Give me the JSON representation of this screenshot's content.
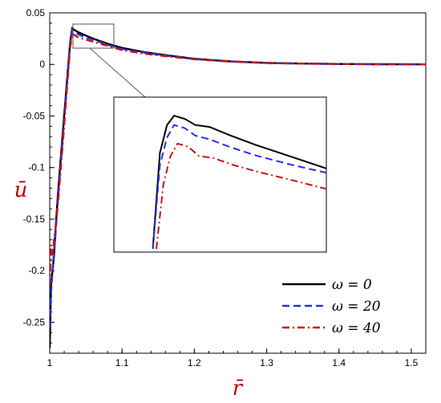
{
  "chart_data": {
    "type": "line",
    "title": "",
    "xlabel": "r̄",
    "ylabel": "ū",
    "xlim": [
      1.0,
      1.52
    ],
    "ylim": [
      -0.28,
      0.05
    ],
    "x_ticks": [
      "1",
      "1.1",
      "1.2",
      "1.3",
      "1.4",
      "1.5"
    ],
    "y_ticks": [
      "0.05",
      "0",
      "-0.05",
      "-0.1",
      "-0.15",
      "-0.2",
      "-0.25"
    ],
    "x_tick_values": [
      1.0,
      1.1,
      1.2,
      1.3,
      1.4,
      1.5
    ],
    "y_tick_values": [
      0.05,
      0,
      -0.05,
      -0.1,
      -0.15,
      -0.2,
      -0.25
    ],
    "legend_position": "bottom-right",
    "label_color": "#c00000",
    "series": [
      {
        "name": "ω = 0",
        "color": "#000000",
        "dash": "solid",
        "x": [
          1.0,
          1.002,
          1.004,
          1.006,
          1.008,
          1.012,
          1.02,
          1.028,
          1.031,
          1.035,
          1.04,
          1.05,
          1.06,
          1.08,
          1.1,
          1.13,
          1.16,
          1.2,
          1.25,
          1.3,
          1.35,
          1.4,
          1.45,
          1.5,
          1.52
        ],
        "y": [
          -0.275,
          -0.21,
          -0.2,
          -0.185,
          -0.16,
          -0.12,
          -0.05,
          0.02,
          0.035,
          0.033,
          0.031,
          0.028,
          0.025,
          0.02,
          0.016,
          0.012,
          0.009,
          0.0055,
          0.003,
          0.0015,
          0.0008,
          0.0004,
          0.0002,
          0.0001,
          0.0
        ]
      },
      {
        "name": "ω = 20",
        "color": "#2233dd",
        "dash": "dashed",
        "x": [
          1.0,
          1.002,
          1.004,
          1.006,
          1.008,
          1.012,
          1.02,
          1.028,
          1.031,
          1.035,
          1.04,
          1.05,
          1.06,
          1.08,
          1.1,
          1.13,
          1.16,
          1.2,
          1.25,
          1.3,
          1.35,
          1.4,
          1.45,
          1.5,
          1.52
        ],
        "y": [
          -0.255,
          -0.22,
          -0.2,
          -0.18,
          -0.165,
          -0.125,
          -0.055,
          0.018,
          0.033,
          0.031,
          0.029,
          0.026,
          0.024,
          0.019,
          0.015,
          0.0115,
          0.0085,
          0.0052,
          0.0028,
          0.0014,
          0.0007,
          0.0004,
          0.0002,
          0.0001,
          0.0
        ]
      },
      {
        "name": "ω = 40",
        "color": "#cc1111",
        "dash": "dashdot",
        "x": [
          1.0,
          1.002,
          1.004,
          1.006,
          1.008,
          1.012,
          1.02,
          1.028,
          1.031,
          1.035,
          1.04,
          1.05,
          1.06,
          1.08,
          1.1,
          1.13,
          1.16,
          1.2,
          1.25,
          1.3,
          1.35,
          1.4,
          1.45,
          1.5,
          1.52
        ],
        "y": [
          -0.215,
          -0.175,
          -0.185,
          -0.17,
          -0.16,
          -0.13,
          -0.06,
          0.015,
          0.03,
          0.028,
          0.026,
          0.024,
          0.022,
          0.018,
          0.014,
          0.0105,
          0.008,
          0.005,
          0.0027,
          0.0013,
          0.0007,
          0.0004,
          0.0002,
          0.0001,
          0.0
        ]
      }
    ],
    "inset": {
      "source_xlim": [
        1.015,
        1.075
      ],
      "source_ylim": [
        0.013,
        0.038
      ],
      "series": [
        {
          "x": [
            1.026,
            1.028,
            1.03,
            1.032,
            1.035,
            1.038,
            1.042,
            1.048,
            1.055,
            1.065,
            1.075
          ],
          "y": [
            0.0135,
            0.029,
            0.0335,
            0.035,
            0.0345,
            0.0335,
            0.0332,
            0.0318,
            0.0303,
            0.0284,
            0.0265
          ]
        },
        {
          "x": [
            1.026,
            1.028,
            1.03,
            1.032,
            1.035,
            1.038,
            1.042,
            1.048,
            1.055,
            1.065,
            1.075
          ],
          "y": [
            0.0135,
            0.027,
            0.0315,
            0.0335,
            0.033,
            0.0318,
            0.0312,
            0.0299,
            0.0286,
            0.0271,
            0.0258
          ]
        },
        {
          "x": [
            1.027,
            1.029,
            1.031,
            1.033,
            1.036,
            1.039,
            1.043,
            1.049,
            1.056,
            1.066,
            1.075
          ],
          "y": [
            0.0135,
            0.024,
            0.0285,
            0.0305,
            0.03,
            0.0285,
            0.0282,
            0.027,
            0.0259,
            0.0245,
            0.0232
          ]
        }
      ]
    }
  }
}
